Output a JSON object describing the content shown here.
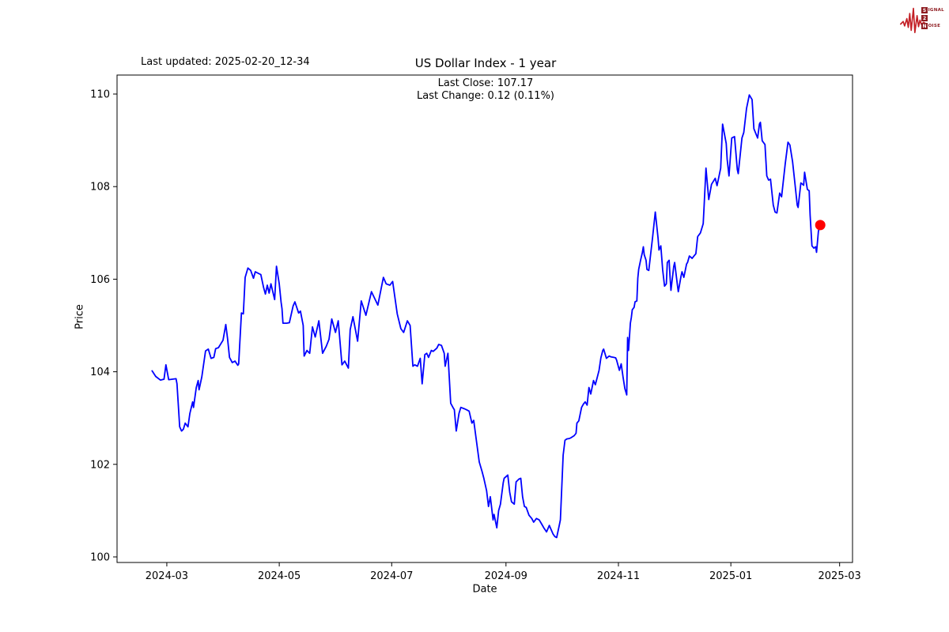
{
  "page": {
    "background": "#ffffff"
  },
  "header": {
    "last_updated": "Last updated: 2025-02-20_12-34"
  },
  "logo": {
    "line1_boxed": "S",
    "line1_rest": "IGNAL",
    "line2_boxed": "2",
    "line2_rest": "",
    "line3_boxed": "N",
    "line3_rest": "OISE",
    "waveform_color": "#c32026",
    "box_color": "#8f1d22"
  },
  "chart_data": {
    "type": "line",
    "title": "US Dollar Index - 1 year",
    "annotation": {
      "line1": "Last Close: 107.17",
      "line2": "Last Change: 0.12 (0.11%)"
    },
    "xlabel": "Date",
    "ylabel": "Price",
    "x_unit": "days since 2024-03-01",
    "xlim": [
      -27,
      372
    ],
    "ylim": [
      99.88,
      110.41
    ],
    "grid": false,
    "legend": null,
    "line_color": "#0000ff",
    "axis_color": "#000000",
    "x_ticks": [
      {
        "value": 0,
        "label": "2024-03"
      },
      {
        "value": 61,
        "label": "2024-05"
      },
      {
        "value": 122,
        "label": "2024-07"
      },
      {
        "value": 184,
        "label": "2024-09"
      },
      {
        "value": 245,
        "label": "2024-11"
      },
      {
        "value": 306,
        "label": "2025-01"
      },
      {
        "value": 365,
        "label": "2025-03"
      }
    ],
    "y_ticks": [
      {
        "value": 100,
        "label": "100"
      },
      {
        "value": 102,
        "label": "102"
      },
      {
        "value": 104,
        "label": "104"
      },
      {
        "value": 106,
        "label": "106"
      },
      {
        "value": 108,
        "label": "108"
      },
      {
        "value": 110,
        "label": "110"
      }
    ],
    "last_point": {
      "x": 354.5,
      "price": 107.17,
      "marker_color": "#ff0000"
    },
    "series": [
      {
        "name": "US Dollar Index",
        "points": [
          [
            -8,
            104.02
          ],
          [
            -6,
            103.9
          ],
          [
            -3.5,
            103.82
          ],
          [
            -1.5,
            103.84
          ],
          [
            -0.5,
            104.15
          ],
          [
            1,
            103.83
          ],
          [
            3,
            103.84
          ],
          [
            5,
            103.85
          ],
          [
            5.5,
            103.74
          ],
          [
            7,
            102.81
          ],
          [
            8,
            102.72
          ],
          [
            9,
            102.76
          ],
          [
            10,
            102.89
          ],
          [
            11.5,
            102.81
          ],
          [
            12.5,
            103.1
          ],
          [
            14,
            103.35
          ],
          [
            14.5,
            103.23
          ],
          [
            16,
            103.66
          ],
          [
            17,
            103.81
          ],
          [
            17.5,
            103.61
          ],
          [
            19,
            103.89
          ],
          [
            21,
            104.45
          ],
          [
            22.5,
            104.49
          ],
          [
            24,
            104.29
          ],
          [
            25.5,
            104.31
          ],
          [
            26.5,
            104.5
          ],
          [
            28,
            104.52
          ],
          [
            30.5,
            104.68
          ],
          [
            32,
            105.02
          ],
          [
            33,
            104.71
          ],
          [
            34,
            104.31
          ],
          [
            35.5,
            104.2
          ],
          [
            37,
            104.23
          ],
          [
            38.5,
            104.14
          ],
          [
            39,
            104.17
          ],
          [
            40.5,
            105.27
          ],
          [
            41.5,
            105.25
          ],
          [
            42.5,
            106.04
          ],
          [
            44,
            106.24
          ],
          [
            45.5,
            106.19
          ],
          [
            47,
            106.02
          ],
          [
            48,
            106.16
          ],
          [
            50,
            106.12
          ],
          [
            51,
            106.1
          ],
          [
            52.5,
            105.82
          ],
          [
            53.5,
            105.68
          ],
          [
            54.5,
            105.87
          ],
          [
            55.5,
            105.7
          ],
          [
            56.5,
            105.9
          ],
          [
            58.5,
            105.56
          ],
          [
            59.5,
            106.28
          ],
          [
            61,
            105.9
          ],
          [
            62,
            105.51
          ],
          [
            62.5,
            105.36
          ],
          [
            63,
            105.05
          ],
          [
            65,
            105.05
          ],
          [
            66.5,
            105.06
          ],
          [
            68.5,
            105.42
          ],
          [
            69.5,
            105.51
          ],
          [
            71.5,
            105.27
          ],
          [
            72.5,
            105.31
          ],
          [
            74,
            105.0
          ],
          [
            74.5,
            104.34
          ],
          [
            76,
            104.46
          ],
          [
            77.5,
            104.4
          ],
          [
            79,
            104.97
          ],
          [
            80.5,
            104.75
          ],
          [
            82.5,
            105.1
          ],
          [
            84.5,
            104.4
          ],
          [
            86.5,
            104.55
          ],
          [
            88,
            104.7
          ],
          [
            89.5,
            105.14
          ],
          [
            91.5,
            104.85
          ],
          [
            93,
            105.1
          ],
          [
            95,
            104.15
          ],
          [
            96.5,
            104.23
          ],
          [
            98.5,
            104.08
          ],
          [
            99.5,
            104.91
          ],
          [
            101,
            105.19
          ],
          [
            103.5,
            104.66
          ],
          [
            105.5,
            105.53
          ],
          [
            108,
            105.22
          ],
          [
            111,
            105.73
          ],
          [
            114.5,
            105.44
          ],
          [
            117.5,
            106.04
          ],
          [
            119,
            105.9
          ],
          [
            121,
            105.87
          ],
          [
            122.5,
            105.95
          ],
          [
            125,
            105.25
          ],
          [
            127,
            104.93
          ],
          [
            128.5,
            104.85
          ],
          [
            130.5,
            105.1
          ],
          [
            132,
            105.0
          ],
          [
            133.5,
            104.12
          ],
          [
            134.5,
            104.15
          ],
          [
            136,
            104.12
          ],
          [
            137.5,
            104.29
          ],
          [
            138.5,
            103.74
          ],
          [
            140,
            104.37
          ],
          [
            141,
            104.4
          ],
          [
            142,
            104.31
          ],
          [
            143.5,
            104.46
          ],
          [
            144.5,
            104.44
          ],
          [
            146.5,
            104.51
          ],
          [
            147.5,
            104.59
          ],
          [
            149,
            104.57
          ],
          [
            150.5,
            104.4
          ],
          [
            151,
            104.12
          ],
          [
            152.5,
            104.4
          ],
          [
            154,
            103.32
          ],
          [
            155.5,
            103.21
          ],
          [
            156,
            103.18
          ],
          [
            157,
            102.72
          ],
          [
            158.5,
            103.1
          ],
          [
            159.5,
            103.23
          ],
          [
            161.5,
            103.2
          ],
          [
            162.5,
            103.18
          ],
          [
            164,
            103.15
          ],
          [
            165.5,
            102.89
          ],
          [
            166.5,
            102.95
          ],
          [
            168,
            102.5
          ],
          [
            169.5,
            102.05
          ],
          [
            171,
            101.85
          ],
          [
            172,
            101.7
          ],
          [
            173.5,
            101.43
          ],
          [
            174.5,
            101.09
          ],
          [
            175.5,
            101.3
          ],
          [
            177,
            100.8
          ],
          [
            177.5,
            100.92
          ],
          [
            179,
            100.63
          ],
          [
            180,
            101.0
          ],
          [
            181,
            101.14
          ],
          [
            182.5,
            101.6
          ],
          [
            183,
            101.7
          ],
          [
            185,
            101.77
          ],
          [
            186,
            101.4
          ],
          [
            187,
            101.19
          ],
          [
            188.5,
            101.14
          ],
          [
            189.5,
            101.62
          ],
          [
            191,
            101.68
          ],
          [
            192,
            101.7
          ],
          [
            193,
            101.3
          ],
          [
            194,
            101.09
          ],
          [
            195,
            101.07
          ],
          [
            196.5,
            100.9
          ],
          [
            198,
            100.83
          ],
          [
            199,
            100.75
          ],
          [
            200.5,
            100.83
          ],
          [
            202,
            100.8
          ],
          [
            203.5,
            100.7
          ],
          [
            204.5,
            100.63
          ],
          [
            206,
            100.54
          ],
          [
            207.5,
            100.68
          ],
          [
            209.5,
            100.5
          ],
          [
            210.5,
            100.44
          ],
          [
            211.5,
            100.42
          ],
          [
            213,
            100.7
          ],
          [
            213.5,
            100.8
          ],
          [
            215,
            102.2
          ],
          [
            216,
            102.52
          ],
          [
            217,
            102.55
          ],
          [
            218.5,
            102.56
          ],
          [
            219.5,
            102.58
          ],
          [
            221,
            102.62
          ],
          [
            222,
            102.67
          ],
          [
            222.5,
            102.89
          ],
          [
            223.5,
            102.94
          ],
          [
            225,
            103.23
          ],
          [
            226,
            103.3
          ],
          [
            227,
            103.35
          ],
          [
            228,
            103.28
          ],
          [
            229,
            103.66
          ],
          [
            230,
            103.52
          ],
          [
            231.5,
            103.81
          ],
          [
            232.5,
            103.72
          ],
          [
            234.5,
            104.03
          ],
          [
            235.5,
            104.3
          ],
          [
            236.5,
            104.46
          ],
          [
            237,
            104.49
          ],
          [
            238.5,
            104.29
          ],
          [
            240,
            104.34
          ],
          [
            241,
            104.32
          ],
          [
            242.5,
            104.31
          ],
          [
            243.5,
            104.3
          ],
          [
            244,
            104.25
          ],
          [
            245.5,
            104.03
          ],
          [
            246.5,
            104.17
          ],
          [
            247.5,
            103.89
          ],
          [
            248.5,
            103.64
          ],
          [
            249.5,
            103.5
          ],
          [
            250,
            104.74
          ],
          [
            250.5,
            104.46
          ],
          [
            251.5,
            105.05
          ],
          [
            252,
            105.17
          ],
          [
            252.5,
            105.34
          ],
          [
            253.5,
            105.39
          ],
          [
            254,
            105.51
          ],
          [
            255,
            105.53
          ],
          [
            255.5,
            106.02
          ],
          [
            256,
            106.21
          ],
          [
            257,
            106.41
          ],
          [
            258,
            106.58
          ],
          [
            258.5,
            106.7
          ],
          [
            259,
            106.53
          ],
          [
            260,
            106.41
          ],
          [
            260.5,
            106.21
          ],
          [
            261.5,
            106.19
          ],
          [
            262.5,
            106.55
          ],
          [
            263.5,
            106.89
          ],
          [
            265,
            107.45
          ],
          [
            266.5,
            106.89
          ],
          [
            267,
            106.63
          ],
          [
            268,
            106.72
          ],
          [
            269,
            106.21
          ],
          [
            270,
            105.85
          ],
          [
            271,
            105.9
          ],
          [
            271.5,
            106.36
          ],
          [
            272.5,
            106.41
          ],
          [
            273,
            106.07
          ],
          [
            273.5,
            105.76
          ],
          [
            275,
            106.27
          ],
          [
            275.5,
            106.36
          ],
          [
            277,
            105.87
          ],
          [
            277.5,
            105.73
          ],
          [
            279,
            106.07
          ],
          [
            279.5,
            106.16
          ],
          [
            280.5,
            106.04
          ],
          [
            282,
            106.33
          ],
          [
            282.5,
            106.36
          ],
          [
            283.5,
            106.5
          ],
          [
            285,
            106.45
          ],
          [
            286,
            106.5
          ],
          [
            287,
            106.55
          ],
          [
            288,
            106.92
          ],
          [
            289.5,
            107.0
          ],
          [
            291,
            107.2
          ],
          [
            291.5,
            107.6
          ],
          [
            292.5,
            108.4
          ],
          [
            294,
            107.72
          ],
          [
            295.5,
            108.05
          ],
          [
            297.5,
            108.18
          ],
          [
            298.5,
            108.02
          ],
          [
            300.5,
            108.4
          ],
          [
            301.5,
            109.35
          ],
          [
            303.5,
            108.93
          ],
          [
            304,
            108.59
          ],
          [
            305,
            108.23
          ],
          [
            306.5,
            109.05
          ],
          [
            308,
            109.08
          ],
          [
            309.5,
            108.37
          ],
          [
            310,
            108.28
          ],
          [
            312,
            109.05
          ],
          [
            313,
            109.17
          ],
          [
            314.5,
            109.69
          ],
          [
            316,
            109.98
          ],
          [
            317.5,
            109.88
          ],
          [
            318.5,
            109.25
          ],
          [
            320.5,
            109.05
          ],
          [
            321.5,
            109.35
          ],
          [
            322,
            109.39
          ],
          [
            323,
            108.99
          ],
          [
            324.5,
            108.91
          ],
          [
            325.5,
            108.23
          ],
          [
            326.5,
            108.14
          ],
          [
            327.5,
            108.16
          ],
          [
            329,
            107.6
          ],
          [
            330,
            107.45
          ],
          [
            331,
            107.43
          ],
          [
            332.5,
            107.86
          ],
          [
            333.5,
            107.78
          ],
          [
            335.5,
            108.49
          ],
          [
            337,
            108.96
          ],
          [
            338,
            108.9
          ],
          [
            339.5,
            108.54
          ],
          [
            340.5,
            108.16
          ],
          [
            342,
            107.6
          ],
          [
            342.5,
            107.55
          ],
          [
            344,
            108.08
          ],
          [
            345.5,
            108.03
          ],
          [
            346,
            108.31
          ],
          [
            347.5,
            107.94
          ],
          [
            348.5,
            107.91
          ],
          [
            349,
            107.38
          ],
          [
            350,
            106.72
          ],
          [
            351,
            106.67
          ],
          [
            352,
            106.7
          ],
          [
            352.5,
            106.58
          ],
          [
            353.5,
            107.04
          ],
          [
            354.5,
            107.17
          ]
        ]
      }
    ]
  }
}
